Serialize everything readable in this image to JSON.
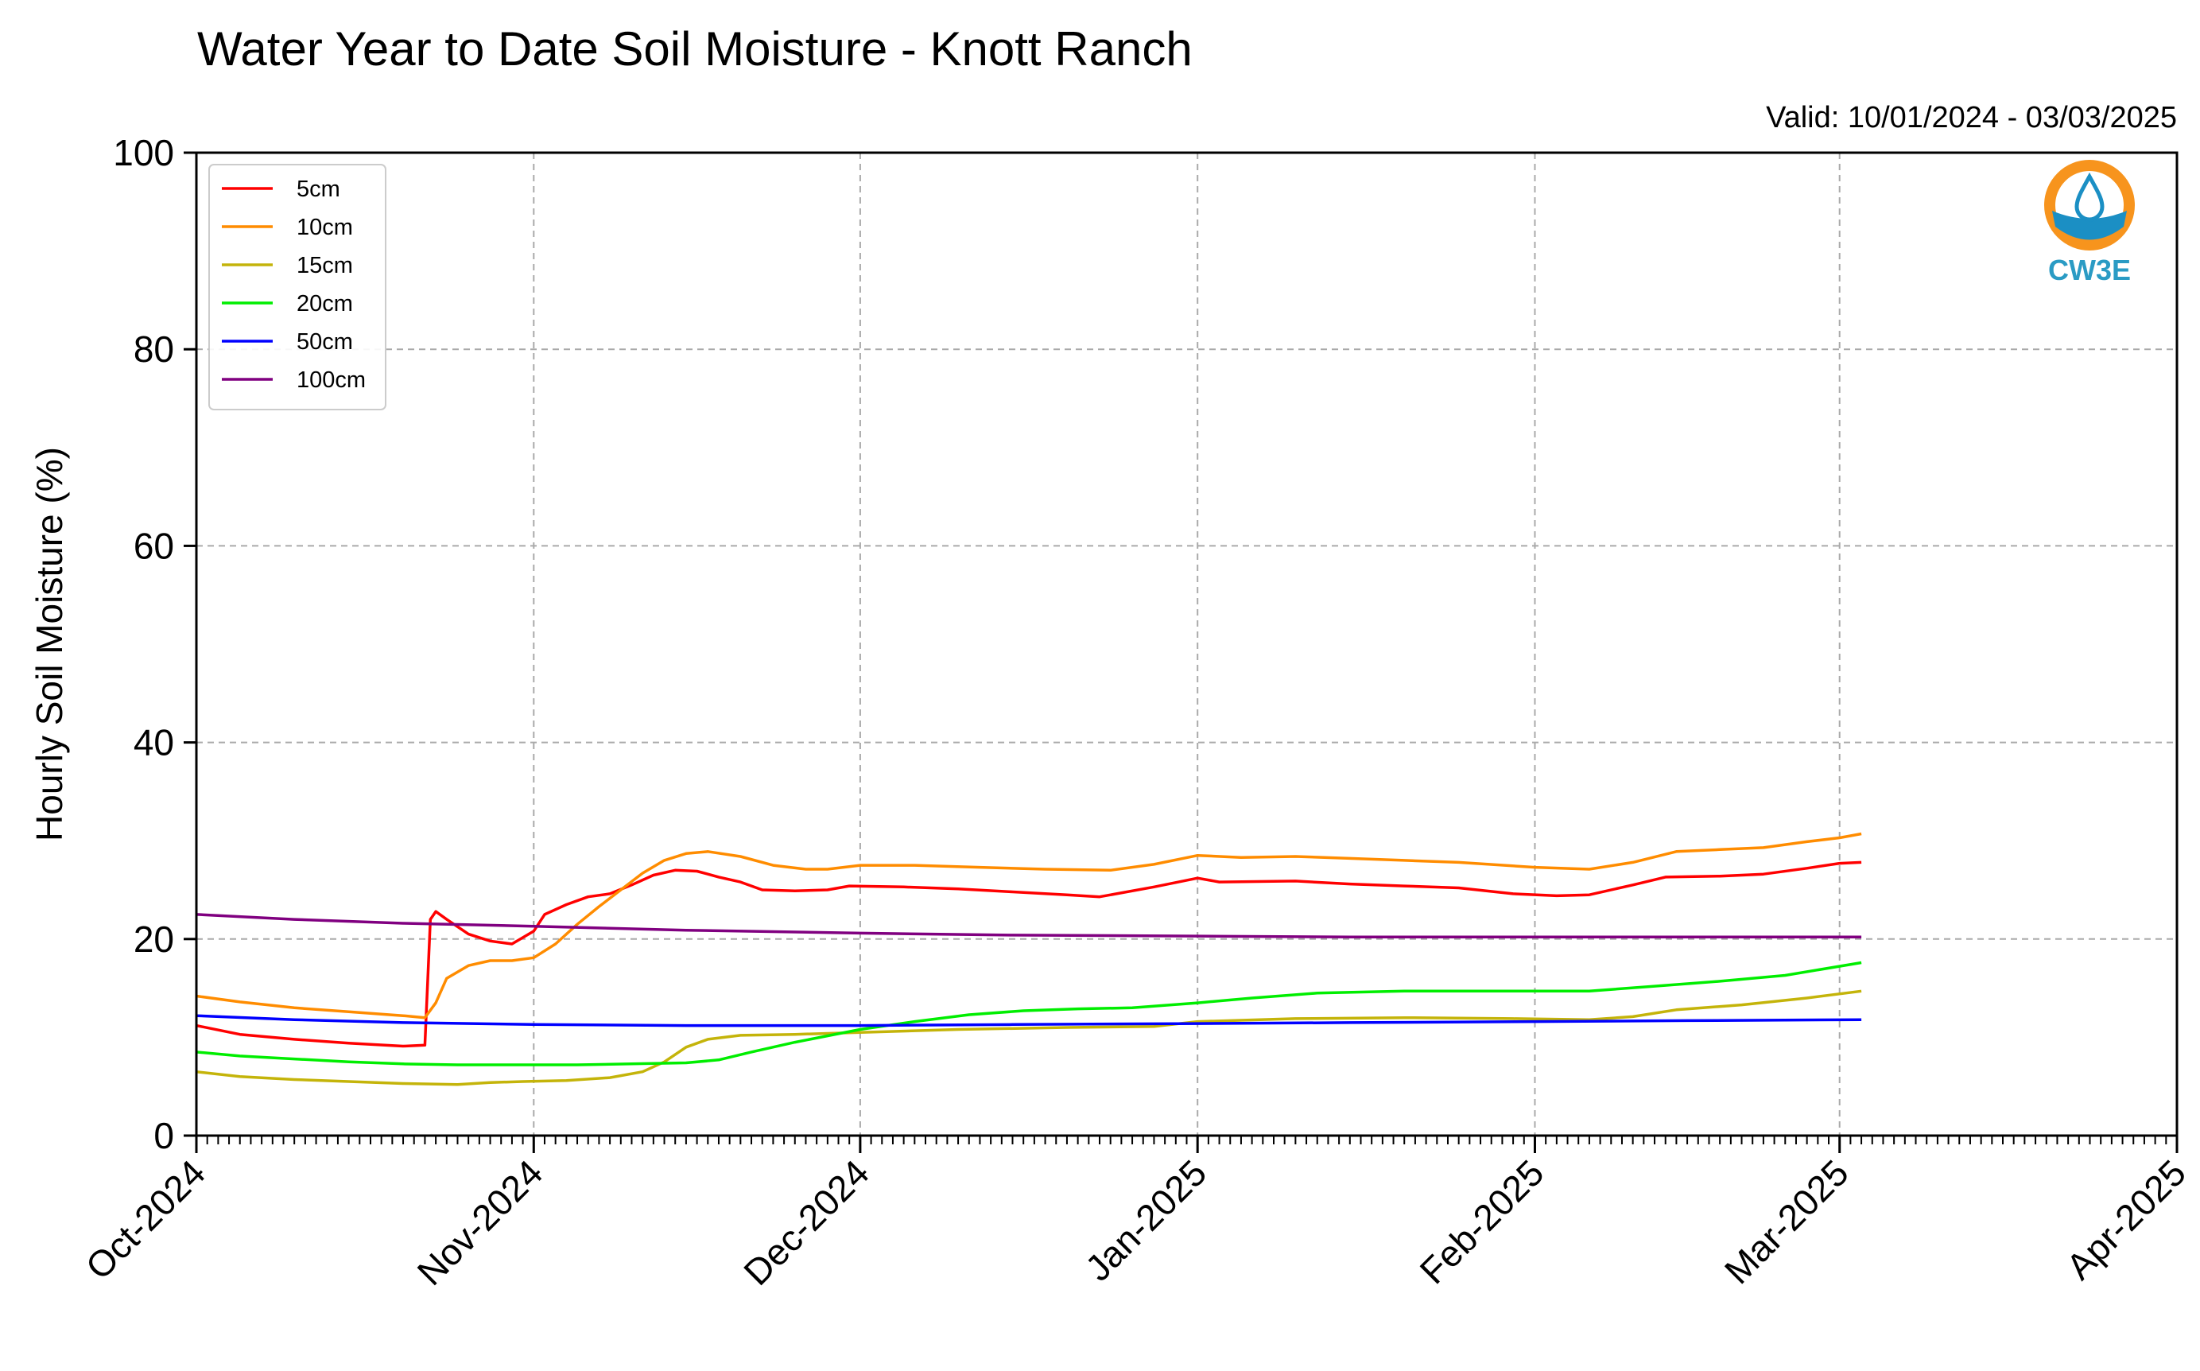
{
  "chart_data": {
    "type": "line",
    "title": "Water Year to Date Soil Moisture - Knott Ranch",
    "subtitle": "Valid: 10/01/2024 - 03/03/2025",
    "xlabel": "",
    "ylabel": "Hourly Soil Moisture (%)",
    "ylim": [
      0,
      100
    ],
    "yticks": [
      0,
      20,
      40,
      60,
      80,
      100
    ],
    "xlim": [
      "2024-10-01",
      "2025-04-01"
    ],
    "xticks": [
      {
        "date": "2024-10-01",
        "label": "Oct-2024"
      },
      {
        "date": "2024-11-01",
        "label": "Nov-2024"
      },
      {
        "date": "2024-12-01",
        "label": "Dec-2024"
      },
      {
        "date": "2025-01-01",
        "label": "Jan-2025"
      },
      {
        "date": "2025-02-01",
        "label": "Feb-2025"
      },
      {
        "date": "2025-03-01",
        "label": "Mar-2025"
      },
      {
        "date": "2025-04-01",
        "label": "Apr-2025"
      }
    ],
    "grid": true,
    "legend_position": "top-left",
    "logo_text": "CW3E",
    "logo_colors": {
      "ring": "#f7941d",
      "water": "#1b8fc4"
    },
    "series": [
      {
        "name": "5cm",
        "color": "#ff0000",
        "points": [
          [
            "2024-10-01",
            11.2
          ],
          [
            "2024-10-05",
            10.3
          ],
          [
            "2024-10-10",
            9.8
          ],
          [
            "2024-10-15",
            9.4
          ],
          [
            "2024-10-20",
            9.1
          ],
          [
            "2024-10-22",
            9.2
          ],
          [
            "2024-10-22.5",
            22.0
          ],
          [
            "2024-10-23",
            22.8
          ],
          [
            "2024-10-24",
            22.0
          ],
          [
            "2024-10-26",
            20.5
          ],
          [
            "2024-10-28",
            19.8
          ],
          [
            "2024-10-30",
            19.5
          ],
          [
            "2024-11-01",
            20.8
          ],
          [
            "2024-11-02",
            22.5
          ],
          [
            "2024-11-04",
            23.5
          ],
          [
            "2024-11-06",
            24.3
          ],
          [
            "2024-11-08",
            24.6
          ],
          [
            "2024-11-10",
            25.5
          ],
          [
            "2024-11-12",
            26.5
          ],
          [
            "2024-11-14",
            27.0
          ],
          [
            "2024-11-16",
            26.9
          ],
          [
            "2024-11-18",
            26.3
          ],
          [
            "2024-11-20",
            25.8
          ],
          [
            "2024-11-22",
            25.0
          ],
          [
            "2024-11-25",
            24.9
          ],
          [
            "2024-11-28",
            25.0
          ],
          [
            "2024-11-30",
            25.4
          ],
          [
            "2024-12-05",
            25.3
          ],
          [
            "2024-12-10",
            25.1
          ],
          [
            "2024-12-15",
            24.8
          ],
          [
            "2024-12-20",
            24.5
          ],
          [
            "2024-12-23",
            24.3
          ],
          [
            "2024-12-28",
            25.3
          ],
          [
            "2025-01-01",
            26.2
          ],
          [
            "2025-01-03",
            25.8
          ],
          [
            "2025-01-10",
            25.9
          ],
          [
            "2025-01-15",
            25.6
          ],
          [
            "2025-01-20",
            25.4
          ],
          [
            "2025-01-25",
            25.2
          ],
          [
            "2025-01-30",
            24.6
          ],
          [
            "2025-02-03",
            24.4
          ],
          [
            "2025-02-06",
            24.5
          ],
          [
            "2025-02-10",
            25.5
          ],
          [
            "2025-02-13",
            26.3
          ],
          [
            "2025-02-18",
            26.4
          ],
          [
            "2025-02-22",
            26.6
          ],
          [
            "2025-02-26",
            27.2
          ],
          [
            "2025-03-01",
            27.7
          ],
          [
            "2025-03-03",
            27.8
          ]
        ]
      },
      {
        "name": "10cm",
        "color": "#ff8c00",
        "points": [
          [
            "2024-10-01",
            14.2
          ],
          [
            "2024-10-05",
            13.6
          ],
          [
            "2024-10-10",
            13.0
          ],
          [
            "2024-10-15",
            12.6
          ],
          [
            "2024-10-20",
            12.2
          ],
          [
            "2024-10-22",
            12.0
          ],
          [
            "2024-10-23",
            13.5
          ],
          [
            "2024-10-24",
            16.0
          ],
          [
            "2024-10-26",
            17.3
          ],
          [
            "2024-10-28",
            17.8
          ],
          [
            "2024-10-30",
            17.8
          ],
          [
            "2024-11-01",
            18.1
          ],
          [
            "2024-11-03",
            19.5
          ],
          [
            "2024-11-05",
            21.5
          ],
          [
            "2024-11-07",
            23.3
          ],
          [
            "2024-11-09",
            25.0
          ],
          [
            "2024-11-11",
            26.7
          ],
          [
            "2024-11-13",
            28.0
          ],
          [
            "2024-11-15",
            28.7
          ],
          [
            "2024-11-17",
            28.9
          ],
          [
            "2024-11-20",
            28.4
          ],
          [
            "2024-11-23",
            27.5
          ],
          [
            "2024-11-26",
            27.1
          ],
          [
            "2024-11-28",
            27.1
          ],
          [
            "2024-12-01",
            27.5
          ],
          [
            "2024-12-06",
            27.5
          ],
          [
            "2024-12-12",
            27.3
          ],
          [
            "2024-12-18",
            27.1
          ],
          [
            "2024-12-24",
            27.0
          ],
          [
            "2024-12-28",
            27.6
          ],
          [
            "2025-01-01",
            28.5
          ],
          [
            "2025-01-05",
            28.3
          ],
          [
            "2025-01-10",
            28.4
          ],
          [
            "2025-01-15",
            28.2
          ],
          [
            "2025-01-20",
            28.0
          ],
          [
            "2025-01-25",
            27.8
          ],
          [
            "2025-02-01",
            27.3
          ],
          [
            "2025-02-06",
            27.1
          ],
          [
            "2025-02-10",
            27.8
          ],
          [
            "2025-02-14",
            28.9
          ],
          [
            "2025-02-18",
            29.1
          ],
          [
            "2025-02-22",
            29.3
          ],
          [
            "2025-02-26",
            29.9
          ],
          [
            "2025-03-01",
            30.3
          ],
          [
            "2025-03-03",
            30.7
          ]
        ]
      },
      {
        "name": "15cm",
        "color": "#c4b40a",
        "points": [
          [
            "2024-10-01",
            6.5
          ],
          [
            "2024-10-05",
            6.0
          ],
          [
            "2024-10-10",
            5.7
          ],
          [
            "2024-10-15",
            5.5
          ],
          [
            "2024-10-20",
            5.3
          ],
          [
            "2024-10-25",
            5.2
          ],
          [
            "2024-10-28",
            5.4
          ],
          [
            "2024-10-31",
            5.5
          ],
          [
            "2024-11-04",
            5.6
          ],
          [
            "2024-11-08",
            5.9
          ],
          [
            "2024-11-11",
            6.5
          ],
          [
            "2024-11-13",
            7.5
          ],
          [
            "2024-11-15",
            9.0
          ],
          [
            "2024-11-17",
            9.8
          ],
          [
            "2024-11-20",
            10.2
          ],
          [
            "2024-11-25",
            10.3
          ],
          [
            "2024-12-01",
            10.5
          ],
          [
            "2024-12-10",
            10.8
          ],
          [
            "2024-12-20",
            11.0
          ],
          [
            "2024-12-28",
            11.1
          ],
          [
            "2025-01-01",
            11.6
          ],
          [
            "2025-01-10",
            11.9
          ],
          [
            "2025-01-20",
            12.0
          ],
          [
            "2025-01-30",
            11.9
          ],
          [
            "2025-02-06",
            11.8
          ],
          [
            "2025-02-10",
            12.1
          ],
          [
            "2025-02-14",
            12.8
          ],
          [
            "2025-02-20",
            13.3
          ],
          [
            "2025-02-26",
            14.0
          ],
          [
            "2025-03-03",
            14.7
          ]
        ]
      },
      {
        "name": "20cm",
        "color": "#00ee00",
        "points": [
          [
            "2024-10-01",
            8.5
          ],
          [
            "2024-10-05",
            8.1
          ],
          [
            "2024-10-10",
            7.8
          ],
          [
            "2024-10-15",
            7.5
          ],
          [
            "2024-10-20",
            7.3
          ],
          [
            "2024-10-25",
            7.2
          ],
          [
            "2024-10-31",
            7.2
          ],
          [
            "2024-11-05",
            7.2
          ],
          [
            "2024-11-10",
            7.3
          ],
          [
            "2024-11-15",
            7.4
          ],
          [
            "2024-11-18",
            7.7
          ],
          [
            "2024-11-21",
            8.5
          ],
          [
            "2024-11-25",
            9.5
          ],
          [
            "2024-12-01",
            10.8
          ],
          [
            "2024-12-06",
            11.6
          ],
          [
            "2024-12-11",
            12.3
          ],
          [
            "2024-12-16",
            12.7
          ],
          [
            "2024-12-21",
            12.9
          ],
          [
            "2024-12-26",
            13.0
          ],
          [
            "2025-01-01",
            13.5
          ],
          [
            "2025-01-06",
            14.0
          ],
          [
            "2025-01-12",
            14.5
          ],
          [
            "2025-01-20",
            14.7
          ],
          [
            "2025-01-28",
            14.7
          ],
          [
            "2025-02-06",
            14.7
          ],
          [
            "2025-02-12",
            15.2
          ],
          [
            "2025-02-18",
            15.7
          ],
          [
            "2025-02-24",
            16.3
          ],
          [
            "2025-03-03",
            17.6
          ]
        ]
      },
      {
        "name": "50cm",
        "color": "#0000ff",
        "points": [
          [
            "2024-10-01",
            12.2
          ],
          [
            "2024-10-10",
            11.8
          ],
          [
            "2024-10-20",
            11.5
          ],
          [
            "2024-11-01",
            11.3
          ],
          [
            "2024-11-15",
            11.2
          ],
          [
            "2024-12-01",
            11.2
          ],
          [
            "2024-12-15",
            11.3
          ],
          [
            "2025-01-01",
            11.4
          ],
          [
            "2025-01-15",
            11.5
          ],
          [
            "2025-02-01",
            11.6
          ],
          [
            "2025-02-15",
            11.7
          ],
          [
            "2025-03-03",
            11.8
          ]
        ]
      },
      {
        "name": "100cm",
        "color": "#800080",
        "points": [
          [
            "2024-10-01",
            22.5
          ],
          [
            "2024-10-10",
            22.0
          ],
          [
            "2024-10-20",
            21.6
          ],
          [
            "2024-11-01",
            21.3
          ],
          [
            "2024-11-15",
            20.9
          ],
          [
            "2024-12-01",
            20.6
          ],
          [
            "2024-12-15",
            20.4
          ],
          [
            "2025-01-01",
            20.3
          ],
          [
            "2025-01-15",
            20.2
          ],
          [
            "2025-02-01",
            20.2
          ],
          [
            "2025-02-15",
            20.2
          ],
          [
            "2025-03-03",
            20.2
          ]
        ]
      }
    ]
  }
}
